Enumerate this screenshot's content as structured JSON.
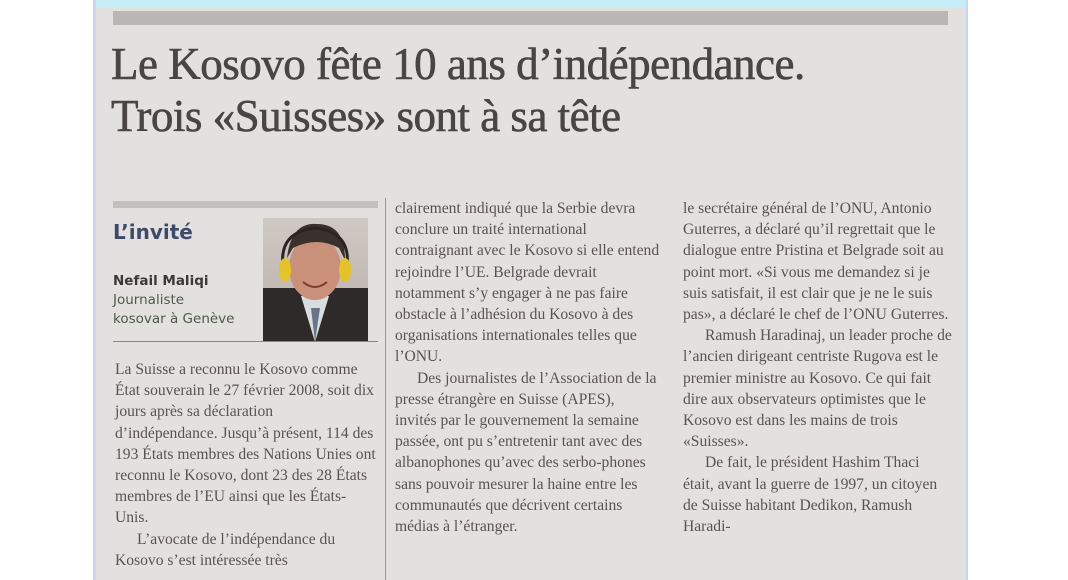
{
  "article": {
    "headline_line1": "Le Kosovo fête 10 ans d’indépendance.",
    "headline_line2": "Trois «Suisses» sont à sa tête"
  },
  "guest_box": {
    "label": "L’invité",
    "author_name": "Nefail Maliqi",
    "author_role_line1": "Journaliste",
    "author_role_line2": "kosovar à Genève",
    "photo": "author-portrait-with-headphones"
  },
  "columns": [
    {
      "paragraphs": [
        {
          "text": "La Suisse a reconnu le Kosovo comme État souverain le 27 février 2008, soit dix jours après sa déclaration d’indépendance. Jusqu’à présent, 114 des 193 États membres des Nations Unies ont reconnu le Kosovo, dont 23 des 28 États membres de l’EU ainsi que les États-Unis.",
          "indent": false
        },
        {
          "text": "L’avocate de l’indépendance du Kosovo s’est intéressée très",
          "indent": true
        }
      ]
    },
    {
      "paragraphs": [
        {
          "text": "clairement indiqué que la Serbie devra conclure un traité international contraignant avec le Kosovo si elle entend rejoindre l’UE. Belgrade devrait notamment s’y engager à ne pas faire obstacle à l’adhésion du Kosovo à des organisations internationales telles que l’ONU.",
          "indent": false
        },
        {
          "text": "Des journalistes de l’Association de la presse étrangère en Suisse (APES), invités par le gouvernement la semaine passée, ont pu s’entretenir tant avec des albanophones qu’avec des serbo-phones sans pouvoir mesurer la haine entre les communautés que décrivent certains médias à l’étranger.",
          "indent": true
        }
      ]
    },
    {
      "paragraphs": [
        {
          "text": "le secrétaire général de l’ONU, Antonio Guterres, a déclaré qu’il regrettait que le dialogue entre Pristina et Belgrade soit au point mort. «Si vous me demandez si je suis satisfait, il est clair que je ne le suis pas», a déclaré le chef de l’ONU Guterres.",
          "indent": false
        },
        {
          "text": "Ramush Haradinaj, un leader proche de l’ancien dirigeant centriste Rugova est le premier ministre au Kosovo. Ce qui fait dire aux observateurs optimistes que le Kosovo est dans les mains de trois «Suisses».",
          "indent": true
        },
        {
          "text": "De fait, le président Hashim Thaci était, avant la guerre de 1997, un citoyen de Suisse habitant Dedikon, Ramush Haradi-",
          "indent": true
        }
      ]
    }
  ]
}
